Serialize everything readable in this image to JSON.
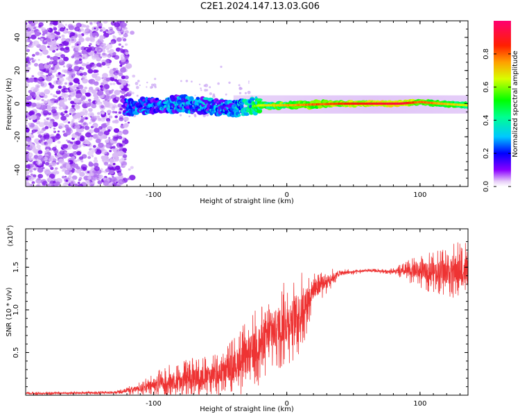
{
  "title": "C2E1.2024.147.13.03.G06",
  "chart_data": [
    {
      "type": "heatmap",
      "xlabel": "Height of straight line (km)",
      "ylabel": "Frequency (Hz)",
      "xlim": [
        -196,
        136
      ],
      "ylim": [
        -50,
        50
      ],
      "x_ticks": [
        "-100",
        "0",
        "100"
      ],
      "y_ticks": [
        "-40",
        "-20",
        "0",
        "20",
        "40"
      ],
      "colorbar": {
        "label": "Normalized spectral amplitude",
        "range": [
          0,
          1
        ],
        "ticks": [
          "0.0",
          "0.2",
          "0.4",
          "0.6",
          "0.8"
        ]
      },
      "noise_region_x": [
        -196,
        -120
      ],
      "signal_band": [
        {
          "x": -120,
          "freq": -2,
          "amp": 0.25
        },
        {
          "x": -80,
          "freq": 0,
          "amp": 0.3
        },
        {
          "x": -40,
          "freq": -3,
          "amp": 0.3
        },
        {
          "x": -20,
          "freq": -1,
          "amp": 0.6
        },
        {
          "x": 0,
          "freq": -1,
          "amp": 0.7
        },
        {
          "x": 40,
          "freq": 0,
          "amp": 0.8
        },
        {
          "x": 85,
          "freq": 0,
          "amp": 0.9
        },
        {
          "x": 100,
          "freq": 1,
          "amp": 0.75
        },
        {
          "x": 115,
          "freq": 0,
          "amp": 0.7
        },
        {
          "x": 136,
          "freq": -1,
          "amp": 0.6
        }
      ]
    },
    {
      "type": "line",
      "xlabel": "Height of straight line (km)",
      "ylabel": "SNR (10 * v/v)",
      "y_multiplier": "(x10",
      "y_multiplier_exp": "4",
      "y_multiplier_close": ")",
      "xlim": [
        -196,
        136
      ],
      "ylim": [
        0,
        1.95
      ],
      "x_ticks": [
        "-100",
        "0",
        "100"
      ],
      "y_ticks": [
        "0.5",
        "1.0",
        "1.5"
      ],
      "color": "#ee3333",
      "envelope": [
        {
          "x": -196,
          "base": 0.02,
          "spread": 0.02
        },
        {
          "x": -130,
          "base": 0.03,
          "spread": 0.02
        },
        {
          "x": -110,
          "base": 0.08,
          "spread": 0.08
        },
        {
          "x": -90,
          "base": 0.15,
          "spread": 0.2
        },
        {
          "x": -70,
          "base": 0.2,
          "spread": 0.25
        },
        {
          "x": -50,
          "base": 0.25,
          "spread": 0.25
        },
        {
          "x": -30,
          "base": 0.45,
          "spread": 0.45
        },
        {
          "x": -10,
          "base": 0.75,
          "spread": 0.5
        },
        {
          "x": 10,
          "base": 0.95,
          "spread": 0.5
        },
        {
          "x": 20,
          "base": 1.25,
          "spread": 0.25
        },
        {
          "x": 40,
          "base": 1.43,
          "spread": 0.05
        },
        {
          "x": 60,
          "base": 1.46,
          "spread": 0.02
        },
        {
          "x": 80,
          "base": 1.45,
          "spread": 0.04
        },
        {
          "x": 100,
          "base": 1.45,
          "spread": 0.2
        },
        {
          "x": 136,
          "base": 1.45,
          "spread": 0.4
        }
      ]
    }
  ]
}
